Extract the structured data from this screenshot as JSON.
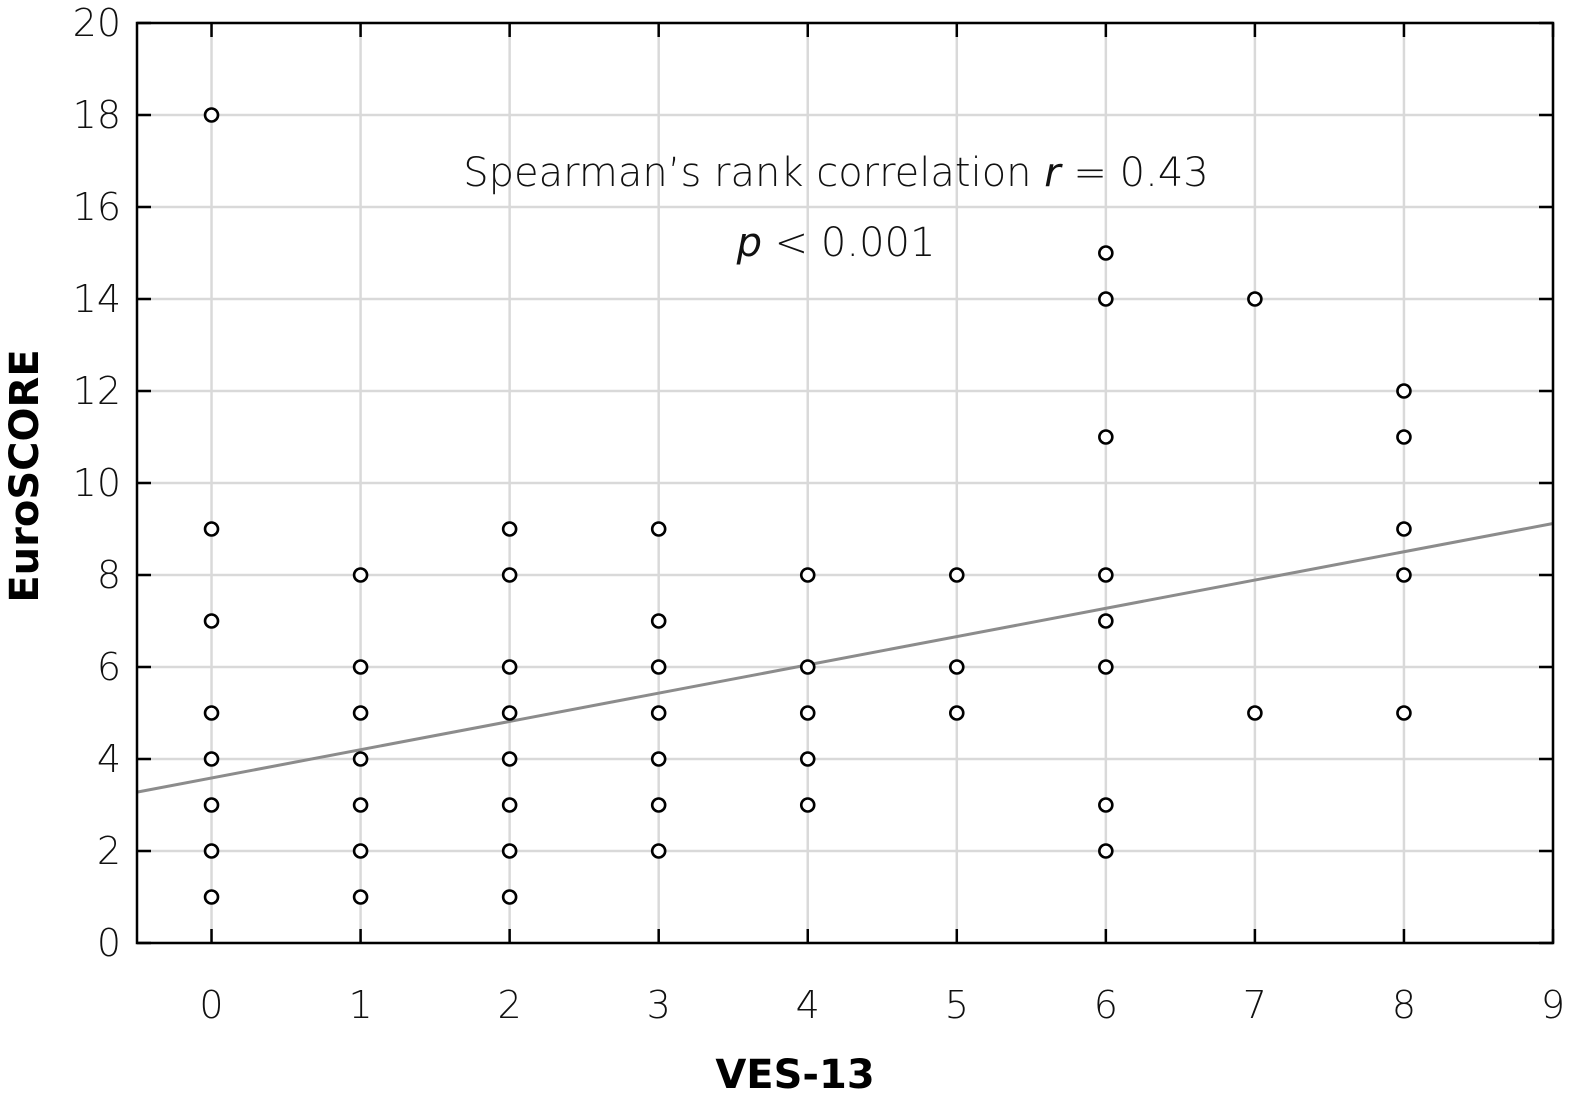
{
  "chart_data": {
    "type": "scatter",
    "xlabel": "VES-13",
    "ylabel": "EuroSCORE",
    "xlim": [
      -0.5,
      9
    ],
    "ylim": [
      0,
      20
    ],
    "x_ticks": [
      0,
      1,
      2,
      3,
      4,
      5,
      6,
      7,
      8,
      9
    ],
    "y_ticks": [
      0,
      2,
      4,
      6,
      8,
      10,
      12,
      14,
      16,
      18,
      20
    ],
    "grid": true,
    "points": [
      {
        "x": 0,
        "y": 18
      },
      {
        "x": 0,
        "y": 9
      },
      {
        "x": 0,
        "y": 7
      },
      {
        "x": 0,
        "y": 5
      },
      {
        "x": 0,
        "y": 4
      },
      {
        "x": 0,
        "y": 3
      },
      {
        "x": 0,
        "y": 2
      },
      {
        "x": 0,
        "y": 1
      },
      {
        "x": 1,
        "y": 8
      },
      {
        "x": 1,
        "y": 6
      },
      {
        "x": 1,
        "y": 5
      },
      {
        "x": 1,
        "y": 4
      },
      {
        "x": 1,
        "y": 3
      },
      {
        "x": 1,
        "y": 2
      },
      {
        "x": 1,
        "y": 1
      },
      {
        "x": 2,
        "y": 9
      },
      {
        "x": 2,
        "y": 8
      },
      {
        "x": 2,
        "y": 6
      },
      {
        "x": 2,
        "y": 5
      },
      {
        "x": 2,
        "y": 4
      },
      {
        "x": 2,
        "y": 3
      },
      {
        "x": 2,
        "y": 2
      },
      {
        "x": 2,
        "y": 1
      },
      {
        "x": 3,
        "y": 9
      },
      {
        "x": 3,
        "y": 7
      },
      {
        "x": 3,
        "y": 6
      },
      {
        "x": 3,
        "y": 5
      },
      {
        "x": 3,
        "y": 4
      },
      {
        "x": 3,
        "y": 3
      },
      {
        "x": 3,
        "y": 2
      },
      {
        "x": 4,
        "y": 8
      },
      {
        "x": 4,
        "y": 6
      },
      {
        "x": 4,
        "y": 5
      },
      {
        "x": 4,
        "y": 4
      },
      {
        "x": 4,
        "y": 3
      },
      {
        "x": 5,
        "y": 8
      },
      {
        "x": 5,
        "y": 6
      },
      {
        "x": 5,
        "y": 5
      },
      {
        "x": 6,
        "y": 15
      },
      {
        "x": 6,
        "y": 14
      },
      {
        "x": 6,
        "y": 11
      },
      {
        "x": 6,
        "y": 8
      },
      {
        "x": 6,
        "y": 7
      },
      {
        "x": 6,
        "y": 6
      },
      {
        "x": 6,
        "y": 3
      },
      {
        "x": 6,
        "y": 2
      },
      {
        "x": 7,
        "y": 14
      },
      {
        "x": 7,
        "y": 5
      },
      {
        "x": 8,
        "y": 12
      },
      {
        "x": 8,
        "y": 11
      },
      {
        "x": 8,
        "y": 9
      },
      {
        "x": 8,
        "y": 8
      },
      {
        "x": 8,
        "y": 5
      }
    ],
    "regression_line": {
      "x": [
        -0.5,
        9
      ],
      "y": [
        3.28,
        9.12
      ],
      "color": "#8c8c8c"
    },
    "annotation": {
      "line1_prefix": "Spearman’s rank correlation ",
      "line1_var": "r",
      "line1_suffix": " = 0.43",
      "line2_var": "p",
      "line2_suffix": " < 0.001"
    },
    "colors": {
      "marker": "#000000",
      "grid": "#d9d9d9",
      "axis": "#000000"
    }
  }
}
